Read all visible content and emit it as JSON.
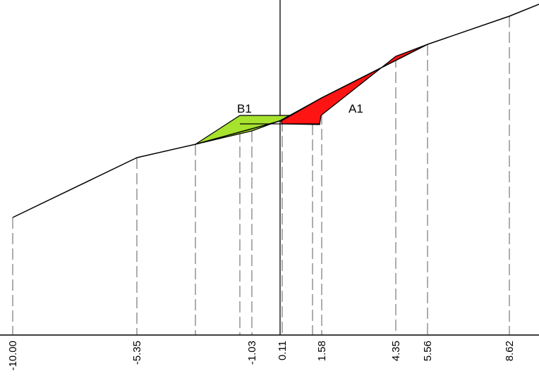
{
  "colors": {
    "background": "#ffffff",
    "terrain_line": "#000000",
    "dashed_line": "#999999",
    "area_a1_fill": "#ff1414",
    "area_b1_fill": "#a6e22e"
  },
  "chart_data": {
    "type": "cross-section",
    "stations": [
      "-10.00",
      "-5.35",
      "-1.03",
      "0.11",
      "1.58",
      "4.35",
      "5.56",
      "8.62"
    ],
    "areas": [
      {
        "name": "A1",
        "kind": "cut",
        "color": "#ff1414"
      },
      {
        "name": "B1",
        "kind": "fill",
        "color": "#a6e22e"
      }
    ],
    "ground_profile": [
      [
        -10.0,
        4.2
      ],
      [
        -5.35,
        6.5
      ],
      [
        -3.2,
        7.2
      ],
      [
        0.11,
        8.1
      ],
      [
        5.56,
        11.1
      ],
      [
        8.62,
        12.4
      ],
      [
        9.8,
        12.9
      ]
    ]
  }
}
